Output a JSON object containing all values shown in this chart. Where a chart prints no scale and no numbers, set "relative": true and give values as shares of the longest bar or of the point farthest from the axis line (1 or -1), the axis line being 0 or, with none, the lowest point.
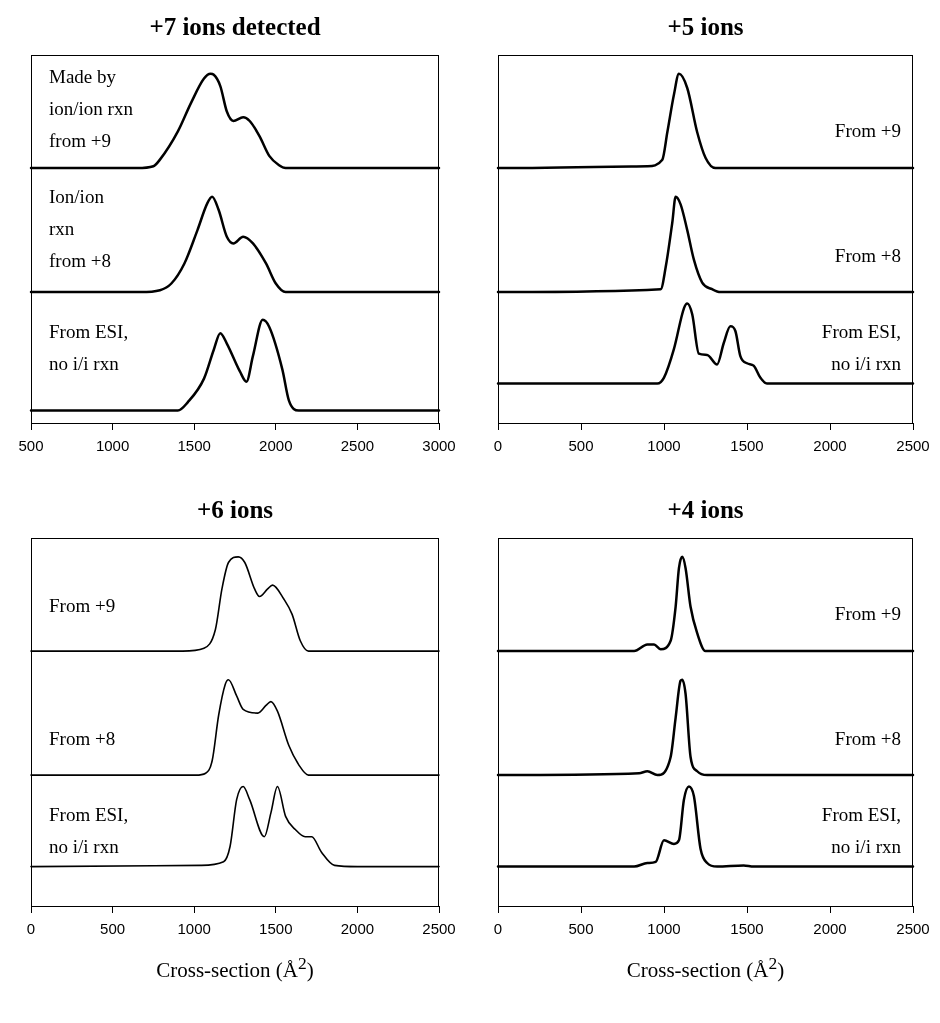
{
  "chart_data": [
    {
      "type": "line",
      "title": "+7 ions detected",
      "relative": true,
      "color": "#000000",
      "xlim": [
        500,
        3000
      ],
      "tick_labels": false,
      "annotations": [
        "Made by ion/ion rxn from +9"
      ],
      "x": [
        500,
        1150,
        1250,
        1290,
        1400,
        1480,
        1560,
        1600,
        1620,
        1660,
        1700,
        1740,
        1800,
        1840,
        1900,
        1960,
        2020,
        2060,
        2100,
        3000
      ],
      "values": [
        0,
        0,
        0.02,
        0.09,
        0.39,
        0.69,
        0.95,
        1.0,
        0.99,
        0.87,
        0.6,
        0.5,
        0.54,
        0.5,
        0.34,
        0.13,
        0.03,
        0,
        0,
        0
      ]
    },
    {
      "type": "line",
      "relative": true,
      "color": "#000000",
      "xlim": [
        500,
        3000
      ],
      "tick_labels": false,
      "annotations": [
        "Ion/ion rxn from +8"
      ],
      "x": [
        500,
        1170,
        1290,
        1360,
        1440,
        1520,
        1580,
        1610,
        1650,
        1700,
        1740,
        1800,
        1860,
        1940,
        2000,
        2060,
        3000
      ],
      "values": [
        0,
        0,
        0.02,
        0.09,
        0.3,
        0.65,
        0.93,
        1.0,
        0.86,
        0.58,
        0.51,
        0.58,
        0.51,
        0.3,
        0.09,
        0,
        0
      ]
    },
    {
      "type": "line",
      "relative": true,
      "color": "#000000",
      "xlim": [
        500,
        3000
      ],
      "xticks": [
        500,
        1000,
        1500,
        2000,
        2500,
        3000
      ],
      "tick_labels": "x",
      "annotations": [
        "From ESI, no i/i rxn"
      ],
      "x": [
        500,
        1400,
        1460,
        1560,
        1620,
        1660,
        1700,
        1780,
        1820,
        1860,
        1920,
        1960,
        2040,
        2080,
        2140,
        3000
      ],
      "values": [
        0.12,
        0.12,
        0.2,
        0.43,
        0.71,
        0.87,
        0.77,
        0.5,
        0.4,
        0.65,
        1.0,
        0.93,
        0.52,
        0.22,
        0.12,
        0.12
      ]
    },
    {
      "type": "line",
      "title": "+5 ions",
      "relative": true,
      "color": "#000000",
      "xlim": [
        0,
        2500
      ],
      "tick_labels": false,
      "annotations": [
        "From +9"
      ],
      "x": [
        0,
        900,
        990,
        1020,
        1060,
        1090,
        1140,
        1200,
        1250,
        1310,
        2500
      ],
      "values": [
        0,
        0.02,
        0.09,
        0.38,
        0.78,
        1.0,
        0.85,
        0.38,
        0.11,
        0,
        0
      ]
    },
    {
      "type": "line",
      "relative": true,
      "color": "#000000",
      "xlim": [
        0,
        2500
      ],
      "tick_labels": false,
      "annotations": [
        "From +8"
      ],
      "x": [
        0,
        980,
        1010,
        1050,
        1070,
        1100,
        1140,
        1180,
        1230,
        1290,
        1340,
        2500
      ],
      "values": [
        0,
        0.03,
        0.26,
        0.73,
        1.0,
        0.92,
        0.65,
        0.34,
        0.1,
        0.03,
        0,
        0
      ]
    },
    {
      "type": "line",
      "relative": true,
      "color": "#000000",
      "xlim": [
        0,
        2500
      ],
      "xticks": [
        0,
        500,
        1000,
        1500,
        2000,
        2500
      ],
      "tick_labels": "x",
      "annotations": [
        "From ESI, no i/i rxn"
      ],
      "x": [
        0,
        960,
        1000,
        1060,
        1120,
        1140,
        1170,
        1210,
        1260,
        1320,
        1360,
        1400,
        1430,
        1460,
        1500,
        1540,
        1580,
        1620,
        2500
      ],
      "values": [
        0.33,
        0.33,
        0.38,
        0.62,
        0.96,
        1.0,
        0.91,
        0.58,
        0.57,
        0.49,
        0.67,
        0.81,
        0.77,
        0.56,
        0.5,
        0.48,
        0.38,
        0.33,
        0.33
      ]
    },
    {
      "type": "line",
      "title": "+6 ions",
      "relative": true,
      "color": "#000000",
      "xlim": [
        0,
        2500
      ],
      "tick_labels": false,
      "annotations": [
        "From +9"
      ],
      "x": [
        0,
        930,
        1060,
        1130,
        1170,
        1210,
        1270,
        1310,
        1370,
        1400,
        1450,
        1480,
        1550,
        1600,
        1650,
        1700,
        2500
      ],
      "values": [
        0,
        0,
        0.03,
        0.23,
        0.66,
        0.94,
        1.0,
        0.94,
        0.66,
        0.58,
        0.66,
        0.7,
        0.55,
        0.39,
        0.11,
        0,
        0
      ]
    },
    {
      "type": "line",
      "relative": true,
      "color": "#000000",
      "xlim": [
        0,
        2500
      ],
      "tick_labels": false,
      "annotations": [
        "From +8"
      ],
      "x": [
        0,
        1010,
        1070,
        1110,
        1150,
        1190,
        1210,
        1260,
        1300,
        1390,
        1440,
        1470,
        1510,
        1580,
        1640,
        1700,
        2500
      ],
      "values": [
        0,
        0,
        0.02,
        0.15,
        0.63,
        0.95,
        1.0,
        0.83,
        0.69,
        0.65,
        0.73,
        0.77,
        0.67,
        0.31,
        0.11,
        0,
        0
      ]
    },
    {
      "type": "line",
      "xlabel": "Cross-section (Å$^{2}$)",
      "relative": true,
      "color": "#000000",
      "xlim": [
        0,
        2500
      ],
      "xticks": [
        0,
        500,
        1000,
        1500,
        2000,
        2500
      ],
      "tick_labels": "x",
      "annotations": [
        "From ESI, no i/i rxn"
      ],
      "x": [
        0,
        1040,
        1180,
        1220,
        1260,
        1300,
        1340,
        1430,
        1470,
        1510,
        1560,
        1620,
        1680,
        1720,
        1780,
        1860,
        2000,
        2500
      ],
      "values": [
        0.33,
        0.34,
        0.37,
        0.5,
        0.89,
        1.0,
        0.89,
        0.58,
        0.78,
        1.0,
        0.75,
        0.64,
        0.58,
        0.58,
        0.45,
        0.34,
        0.33,
        0.33
      ]
    },
    {
      "type": "line",
      "title": "+4 ions",
      "relative": true,
      "color": "#000000",
      "xlim": [
        0,
        2500
      ],
      "tick_labels": false,
      "annotations": [
        "From +9"
      ],
      "x": [
        0,
        820,
        900,
        940,
        980,
        1040,
        1070,
        1090,
        1110,
        1130,
        1160,
        1200,
        1250,
        2500
      ],
      "values": [
        0,
        0,
        0.07,
        0.07,
        0.02,
        0.11,
        0.47,
        0.88,
        1.0,
        0.88,
        0.47,
        0.19,
        0,
        0
      ]
    },
    {
      "type": "line",
      "relative": true,
      "color": "#000000",
      "xlim": [
        0,
        2500
      ],
      "tick_labels": false,
      "annotations": [
        "From +8"
      ],
      "x": [
        0,
        850,
        900,
        960,
        1040,
        1070,
        1100,
        1110,
        1130,
        1160,
        1200,
        1260,
        2500
      ],
      "values": [
        0,
        0.02,
        0.04,
        0,
        0.19,
        0.6,
        0.99,
        1.0,
        0.85,
        0.19,
        0.04,
        0,
        0
      ]
    },
    {
      "type": "line",
      "xlabel": "Cross-section (Å$^{2}$)",
      "relative": true,
      "color": "#000000",
      "xlim": [
        0,
        2500
      ],
      "xticks": [
        0,
        500,
        1000,
        1500,
        2000,
        2500
      ],
      "tick_labels": "x",
      "annotations": [
        "From ESI, no i/i rxn"
      ],
      "x": [
        0,
        820,
        900,
        950,
        1000,
        1060,
        1090,
        1120,
        1150,
        1180,
        1220,
        1260,
        1320,
        1480,
        1540,
        2500
      ],
      "values": [
        0.33,
        0.33,
        0.36,
        0.37,
        0.55,
        0.52,
        0.55,
        0.89,
        1.0,
        0.92,
        0.48,
        0.36,
        0.33,
        0.34,
        0.33,
        0.33
      ]
    }
  ]
}
